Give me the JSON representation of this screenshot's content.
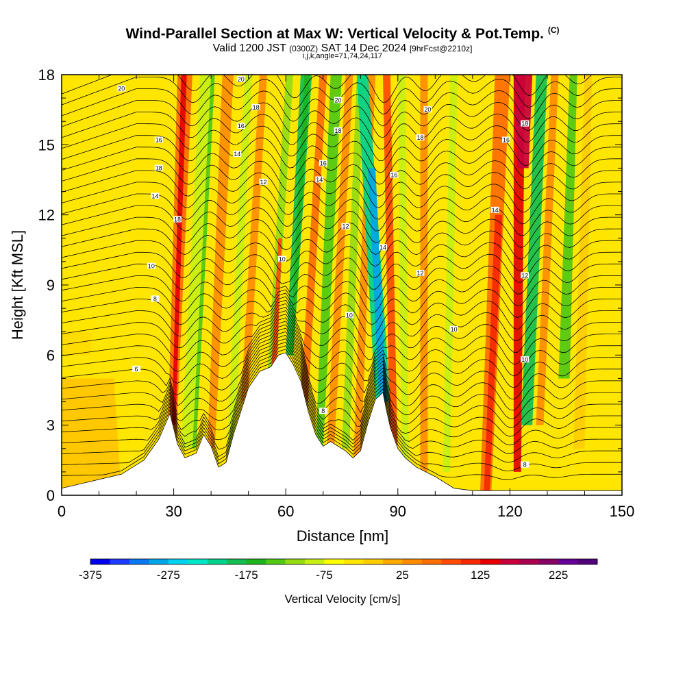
{
  "header": {
    "title": "Wind-Parallel Section at Max W: Vertical Velocity & Pot.Temp.",
    "copyright": "(C)",
    "valid_main": "Valid 1200 JST",
    "valid_utc": "(0300Z)",
    "valid_date": "SAT 14 Dec 2024",
    "forecast": "[9hrFcst@2210z]",
    "indices": "i,j,k,angle=71,74,24,117"
  },
  "chart_data": {
    "type": "heatmap",
    "xlabel": "Distance [nm]",
    "ylabel": "Height [Kft MSL]",
    "xlim": [
      0,
      150
    ],
    "ylim": [
      0,
      18
    ],
    "x_ticks": [
      0,
      30,
      60,
      90,
      120,
      150
    ],
    "y_ticks": [
      0,
      3,
      6,
      9,
      12,
      15,
      18
    ],
    "colorbar": {
      "label": "Vertical Velocity [cm/s]",
      "min": -375,
      "max": 300,
      "step": 25,
      "tick_labels": [
        "-375",
        "-275",
        "-175",
        "-75",
        "25",
        "125",
        "225"
      ],
      "colors": [
        "#0000ee",
        "#1e3cff",
        "#0a78f0",
        "#00a5e6",
        "#00d2f0",
        "#00e6c8",
        "#00d28c",
        "#14be50",
        "#1eb41e",
        "#50c814",
        "#96dc14",
        "#c8f014",
        "#ffff00",
        "#ffe600",
        "#ffcd00",
        "#ffaa00",
        "#ff8c00",
        "#ff6e00",
        "#ff4b00",
        "#f52800",
        "#e60000",
        "#c8003c",
        "#aa0050",
        "#870064",
        "#640096",
        "#500078"
      ]
    },
    "terrain_kft": [
      [
        0,
        0.3
      ],
      [
        8,
        0.6
      ],
      [
        16,
        0.9
      ],
      [
        22,
        1.5
      ],
      [
        26,
        2.4
      ],
      [
        29,
        3.5
      ],
      [
        31,
        2.2
      ],
      [
        33,
        1.6
      ],
      [
        36,
        1.8
      ],
      [
        38,
        2.6
      ],
      [
        40,
        2.1
      ],
      [
        42,
        1.2
      ],
      [
        44,
        1.4
      ],
      [
        46,
        2.6
      ],
      [
        48,
        3.6
      ],
      [
        50,
        4.6
      ],
      [
        53,
        5.3
      ],
      [
        56,
        5.5
      ],
      [
        58,
        6.0
      ],
      [
        60,
        6.1
      ],
      [
        62,
        5.6
      ],
      [
        64,
        4.9
      ],
      [
        66,
        3.6
      ],
      [
        68,
        2.6
      ],
      [
        70,
        2.1
      ],
      [
        72,
        2.3
      ],
      [
        74,
        2.1
      ],
      [
        76,
        1.9
      ],
      [
        78,
        1.6
      ],
      [
        80,
        1.9
      ],
      [
        82,
        3.1
      ],
      [
        84,
        4.1
      ],
      [
        86,
        4.4
      ],
      [
        87,
        3.6
      ],
      [
        88,
        2.9
      ],
      [
        90,
        2.0
      ],
      [
        92,
        1.6
      ],
      [
        95,
        1.2
      ],
      [
        100,
        0.8
      ],
      [
        105,
        0.3
      ],
      [
        110,
        0.2
      ],
      [
        120,
        0.2
      ],
      [
        130,
        0.2
      ],
      [
        140,
        0.2
      ],
      [
        150,
        0.2
      ]
    ],
    "pot_temp_contour_labels": [
      {
        "text": "20",
        "x": 16,
        "y": 17.4
      },
      {
        "text": "16",
        "x": 26,
        "y": 15.2
      },
      {
        "text": "18",
        "x": 26,
        "y": 14.0
      },
      {
        "text": "14",
        "x": 25,
        "y": 12.8
      },
      {
        "text": "18",
        "x": 31,
        "y": 11.8
      },
      {
        "text": "10",
        "x": 24,
        "y": 9.8
      },
      {
        "text": "8",
        "x": 25,
        "y": 8.4
      },
      {
        "text": "6",
        "x": 20,
        "y": 5.4
      },
      {
        "text": "20",
        "x": 48,
        "y": 17.8
      },
      {
        "text": "18",
        "x": 52,
        "y": 16.6
      },
      {
        "text": "16",
        "x": 48,
        "y": 15.8
      },
      {
        "text": "14",
        "x": 47,
        "y": 14.6
      },
      {
        "text": "12",
        "x": 54,
        "y": 13.4
      },
      {
        "text": "10",
        "x": 59,
        "y": 10.1
      },
      {
        "text": "20",
        "x": 74,
        "y": 16.9
      },
      {
        "text": "18",
        "x": 74,
        "y": 15.6
      },
      {
        "text": "16",
        "x": 70,
        "y": 14.2
      },
      {
        "text": "14",
        "x": 69,
        "y": 13.5
      },
      {
        "text": "12",
        "x": 76,
        "y": 11.5
      },
      {
        "text": "10",
        "x": 77,
        "y": 7.7
      },
      {
        "text": "8",
        "x": 70,
        "y": 3.6
      },
      {
        "text": "14",
        "x": 86,
        "y": 10.6
      },
      {
        "text": "16",
        "x": 89,
        "y": 13.7
      },
      {
        "text": "18",
        "x": 96,
        "y": 15.3
      },
      {
        "text": "20",
        "x": 98,
        "y": 16.5
      },
      {
        "text": "12",
        "x": 96,
        "y": 9.5
      },
      {
        "text": "10",
        "x": 105,
        "y": 7.1
      },
      {
        "text": "16",
        "x": 119,
        "y": 15.2
      },
      {
        "text": "18",
        "x": 124,
        "y": 15.9
      },
      {
        "text": "14",
        "x": 116,
        "y": 12.2
      },
      {
        "text": "12",
        "x": 124,
        "y": 9.4
      },
      {
        "text": "10",
        "x": 124,
        "y": 5.8
      },
      {
        "text": "8",
        "x": 124,
        "y": 1.3
      }
    ]
  }
}
